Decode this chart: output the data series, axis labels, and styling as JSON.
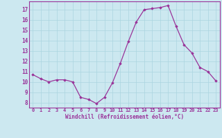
{
  "hours": [
    0,
    1,
    2,
    3,
    4,
    5,
    6,
    7,
    8,
    9,
    10,
    11,
    12,
    13,
    14,
    15,
    16,
    17,
    18,
    19,
    20,
    21,
    22,
    23
  ],
  "values": [
    10.7,
    10.3,
    10.0,
    10.2,
    10.2,
    10.0,
    8.5,
    8.3,
    7.9,
    8.5,
    9.9,
    11.8,
    13.9,
    15.8,
    17.0,
    17.1,
    17.2,
    17.4,
    15.4,
    13.6,
    12.8,
    11.4,
    11.0,
    10.1
  ],
  "line_color": "#993399",
  "marker_color": "#993399",
  "bg_color": "#cce8f0",
  "grid_color": "#aad4e0",
  "axis_color": "#993399",
  "tick_color": "#993399",
  "ylabel_vals": [
    8,
    9,
    10,
    11,
    12,
    13,
    14,
    15,
    16,
    17
  ],
  "ylim": [
    7.5,
    17.8
  ],
  "xlim": [
    -0.5,
    23.5
  ],
  "xlabel": "Windchill (Refroidissement éolien,°C)"
}
